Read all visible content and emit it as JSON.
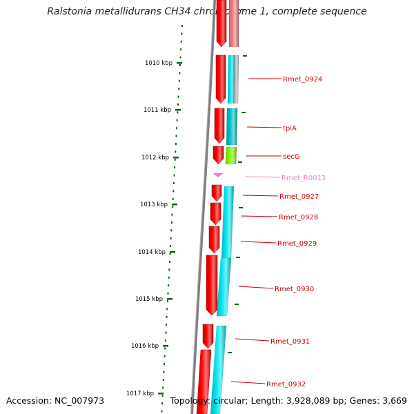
{
  "title": "Ralstonia metallidurans CH34 chromosome 1, complete sequence",
  "accession": "Accession: NC_007973",
  "summary": "Topology: circular; Length: 3,928,089 bp; Genes: 3,669",
  "colors": {
    "forward_cds": "#ff0000",
    "reverse_cds": "#00e5ee",
    "backbone": "#7f7f7f",
    "kbp_ticks": "#006400",
    "gene_labels": "#cc0000",
    "rna": "#ee82c8",
    "sec_gene": "#7fff00"
  },
  "scale": {
    "tick_labels": [
      "1010 kbp",
      "1011 kbp",
      "1012 kbp",
      "1013 kbp",
      "1014 kbp",
      "1015 kbp",
      "1016 kbp",
      "1017 kbp"
    ]
  },
  "genes": [
    {
      "label": "Rmet_0924",
      "strand": "reverse"
    },
    {
      "label": "tpiA",
      "strand": "reverse"
    },
    {
      "label": "secG",
      "strand": "reverse"
    },
    {
      "label": "Rmet_R0013",
      "strand": "forward",
      "type": "tRNA"
    },
    {
      "label": "Rmet_0927",
      "strand": "reverse"
    },
    {
      "label": "Rmet_0928",
      "strand": "reverse"
    },
    {
      "label": "Rmet_0929",
      "strand": "reverse"
    },
    {
      "label": "Rmet_0930",
      "strand": "reverse"
    },
    {
      "label": "Rmet_0931",
      "strand": "reverse"
    },
    {
      "label": "Rmet_0932",
      "strand": "reverse"
    }
  ]
}
